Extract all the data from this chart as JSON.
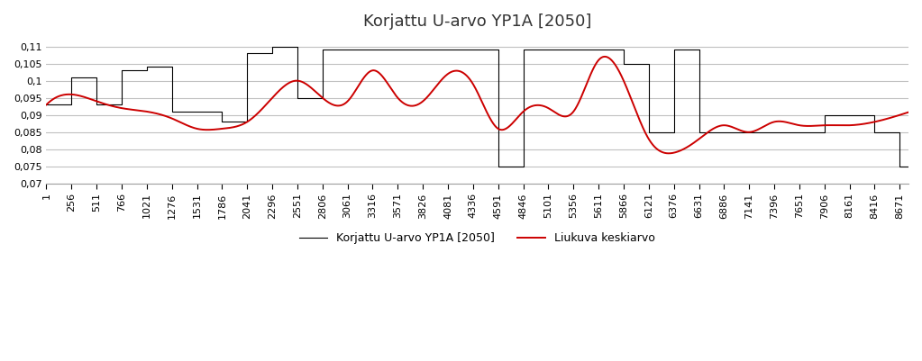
{
  "title": "Korjattu U-arvo YP1A [2050]",
  "legend_black": "Korjattu U-arvo YP1A [2050]",
  "legend_red": "Liukuva keskiarvo",
  "ylim": [
    0.07,
    0.113
  ],
  "yticks": [
    0.07,
    0.075,
    0.08,
    0.085,
    0.09,
    0.095,
    0.1,
    0.105,
    0.11
  ],
  "xticks": [
    1,
    256,
    511,
    766,
    1021,
    1276,
    1531,
    1786,
    2041,
    2296,
    2551,
    2806,
    3061,
    3316,
    3571,
    3826,
    4081,
    4336,
    4591,
    4846,
    5101,
    5356,
    5611,
    5866,
    6121,
    6376,
    6631,
    6886,
    7141,
    7396,
    7651,
    7906,
    8161,
    8416,
    8671
  ],
  "background_color": "#ffffff",
  "grid_color": "#c0c0c0",
  "line_black_color": "#000000",
  "line_red_color": "#cc0000",
  "title_fontsize": 13,
  "tick_fontsize": 8,
  "legend_fontsize": 9,
  "black_x": [
    1,
    256,
    511,
    766,
    1021,
    1276,
    1531,
    1786,
    2041,
    2296,
    2551,
    2806,
    3061,
    3316,
    3571,
    3826,
    4081,
    4336,
    4591,
    4846,
    5101,
    5356,
    5611,
    5866,
    6121,
    6376,
    6631,
    6886,
    7141,
    7396,
    7651,
    7906,
    8161,
    8416,
    8671
  ],
  "black_y": [
    0.093,
    0.101,
    0.093,
    0.103,
    0.104,
    0.091,
    0.091,
    0.088,
    0.108,
    0.11,
    0.095,
    0.109,
    0.109,
    0.109,
    0.109,
    0.109,
    0.109,
    0.109,
    0.075,
    0.109,
    0.109,
    0.109,
    0.109,
    0.105,
    0.085,
    0.109,
    0.085,
    0.085,
    0.085,
    0.085,
    0.085,
    0.09,
    0.09,
    0.085,
    0.075
  ],
  "red_y": [
    0.093,
    0.096,
    0.094,
    0.092,
    0.091,
    0.089,
    0.086,
    0.086,
    0.088,
    0.095,
    0.1,
    0.095,
    0.094,
    0.103,
    0.095,
    0.094,
    0.102,
    0.099,
    0.086,
    0.091,
    0.092,
    0.091,
    0.106,
    0.1,
    0.083,
    0.079,
    0.083,
    0.087,
    0.085,
    0.088,
    0.087,
    0.087,
    0.087,
    0.088,
    0.09
  ]
}
